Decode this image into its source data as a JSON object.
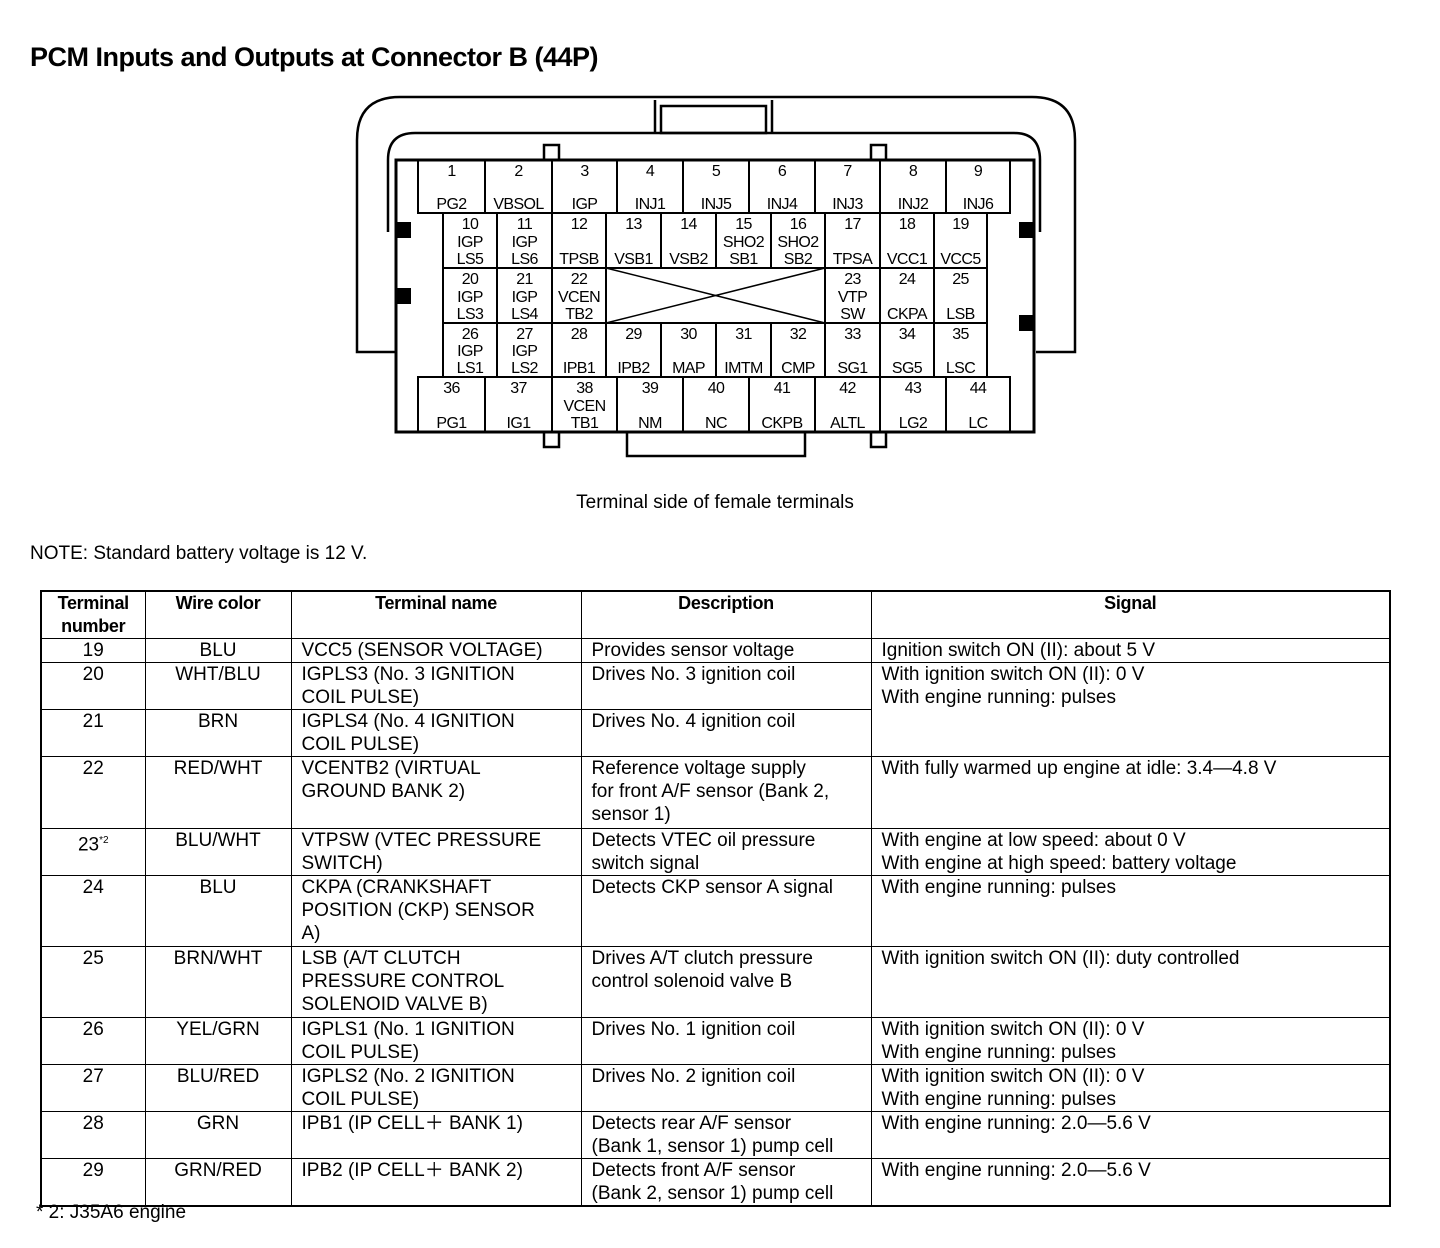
{
  "title": "PCM Inputs and Outputs at Connector B (44P)",
  "connector": {
    "caption": "Terminal side of female terminals",
    "terminals": {
      "1": "PG2",
      "2": "VBSOL",
      "3": "IGP",
      "4": "INJ1",
      "5": "INJ5",
      "6": "INJ4",
      "7": "INJ3",
      "8": "INJ2",
      "9": "INJ6",
      "10": "IGP\nLS5",
      "11": "IGP\nLS6",
      "12": "TPSB",
      "13": "VSB1",
      "14": "VSB2",
      "15": "SHO2\nSB1",
      "16": "SHO2\nSB2",
      "17": "TPSA",
      "18": "VCC1",
      "19": "VCC5",
      "20": "IGP\nLS3",
      "21": "IGP\nLS4",
      "22": "VCEN\nTB2",
      "23": "VTP\nSW",
      "24": "CKPA",
      "25": "LSB",
      "26": "IGP\nLS1",
      "27": "IGP\nLS2",
      "28": "IPB1",
      "29": "IPB2",
      "30": "MAP",
      "31": "IMTM",
      "32": "CMP",
      "33": "SG1",
      "34": "SG5",
      "35": "LSC",
      "36": "PG1",
      "37": "IG1",
      "38": "VCEN\nTB1",
      "39": "NM",
      "40": "NC",
      "41": "CKPB",
      "42": "ALTL",
      "43": "LG2",
      "44": "LC"
    }
  },
  "note": "NOTE: Standard battery voltage is 12 V.",
  "table": {
    "headers": [
      "Terminal\nnumber",
      "Wire color",
      "Terminal name",
      "Description",
      "Signal"
    ],
    "rows": [
      {
        "terminal": "19",
        "wire": "BLU",
        "name": "VCC5 (SENSOR VOLTAGE)",
        "desc": "Provides sensor voltage",
        "signal": "Ignition switch ON (II): about 5 V"
      },
      {
        "terminal": "20",
        "wire": "WHT/BLU",
        "name": "IGPLS3 (No. 3 IGNITION\nCOIL PULSE)",
        "desc": "Drives No. 3 ignition coil",
        "signal": "With ignition switch ON (II): 0 V\nWith engine running: pulses",
        "signal_rowspan": 2
      },
      {
        "terminal": "21",
        "wire": "BRN",
        "name": "IGPLS4 (No. 4 IGNITION\nCOIL PULSE)",
        "desc": "Drives No. 4 ignition coil"
      },
      {
        "terminal": "22",
        "wire": "RED/WHT",
        "name": "VCENTB2 (VIRTUAL\nGROUND BANK 2)",
        "desc": "Reference voltage supply\nfor front A/F sensor (Bank 2,\nsensor 1)",
        "signal": "With fully warmed up engine at idle: 3.4—4.8 V"
      },
      {
        "terminal": "23",
        "footnote_mark": "*2",
        "wire": "BLU/WHT",
        "name": "VTPSW (VTEC PRESSURE\nSWITCH)",
        "desc": "Detects VTEC oil pressure\nswitch signal",
        "signal": "With engine at low speed: about 0 V\nWith engine at high speed: battery voltage"
      },
      {
        "terminal": "24",
        "wire": "BLU",
        "name": "CKPA (CRANKSHAFT\nPOSITION (CKP) SENSOR\nA)",
        "desc": "Detects CKP sensor A signal",
        "signal": "With engine running: pulses"
      },
      {
        "terminal": "25",
        "wire": "BRN/WHT",
        "name": "LSB (A/T CLUTCH\nPRESSURE CONTROL\nSOLENOID VALVE B)",
        "desc": "Drives A/T clutch pressure\ncontrol solenoid valve B",
        "signal": "With ignition switch ON (II): duty controlled"
      },
      {
        "terminal": "26",
        "wire": "YEL/GRN",
        "name": "IGPLS1 (No. 1 IGNITION\nCOIL PULSE)",
        "desc": "Drives No. 1 ignition coil",
        "signal": "With ignition switch ON (II): 0 V\nWith engine running: pulses"
      },
      {
        "terminal": "27",
        "wire": "BLU/RED",
        "name": "IGPLS2 (No. 2 IGNITION\nCOIL PULSE)",
        "desc": "Drives No. 2 ignition coil",
        "signal": "With ignition switch ON (II): 0 V\nWith engine running: pulses"
      },
      {
        "terminal": "28",
        "wire": "GRN",
        "name": "IPB1 (IP CELL＋ BANK 1)",
        "desc": "Detects rear A/F sensor\n(Bank 1, sensor 1) pump cell",
        "signal": "With engine running: 2.0—5.6 V"
      },
      {
        "terminal": "29",
        "wire": "GRN/RED",
        "name": "IPB2 (IP CELL＋ BANK 2)",
        "desc": "Detects front A/F sensor\n(Bank 2, sensor 1) pump cell",
        "signal": "With engine running: 2.0—5.6 V"
      }
    ]
  },
  "footnote": "* 2: J35A6 engine"
}
